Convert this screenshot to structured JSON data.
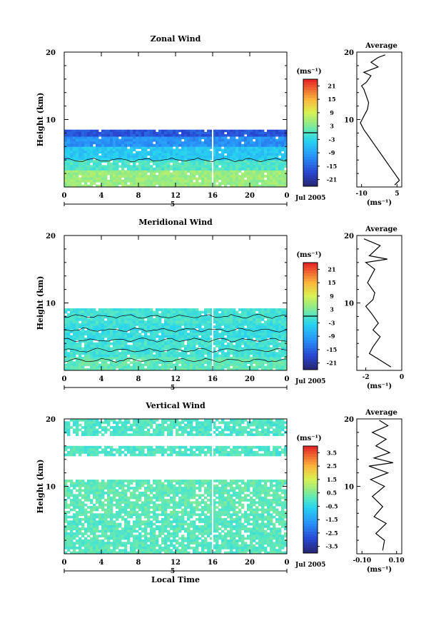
{
  "chart_data": [
    {
      "type": "heatmap",
      "title": "Zonal Wind",
      "ylabel": "Height (km)",
      "ylim": [
        0,
        20
      ],
      "y_ticks": [
        "20",
        "10"
      ],
      "x_ticks": [
        "0",
        "4",
        "8",
        "12",
        "16",
        "20",
        "0"
      ],
      "date_marker": "5",
      "date_label": "Jul 2005",
      "colorbar": {
        "unit": "(ms⁻¹)",
        "ticks": [
          "21",
          "15",
          "9",
          "3",
          "-3",
          "-9",
          "-15",
          "-21"
        ],
        "range": [
          -24,
          24
        ]
      },
      "field": {
        "top_km": 8.5,
        "bands": [
          {
            "from_km": 0.0,
            "to_km": 2.5,
            "value": 5
          },
          {
            "from_km": 2.5,
            "to_km": 4.0,
            "value": 0
          },
          {
            "from_km": 4.0,
            "to_km": 6.0,
            "value": -5
          },
          {
            "from_km": 6.0,
            "to_km": 7.5,
            "value": -11
          },
          {
            "from_km": 7.5,
            "to_km": 8.5,
            "value": -17
          }
        ],
        "contour_level_km": [
          4.0
        ]
      },
      "average": {
        "title": "Average",
        "xlabel": "(ms⁻¹)",
        "x_ticks": [
          "-10",
          "5"
        ],
        "xlim": [
          -12,
          7
        ],
        "y_ticks": [
          "20",
          "10"
        ],
        "profile": [
          [
            4,
            0.3
          ],
          [
            6,
            1.0
          ],
          [
            4,
            2.0
          ],
          [
            2,
            3.0
          ],
          [
            -1,
            4.5
          ],
          [
            -4,
            6
          ],
          [
            -7,
            7.5
          ],
          [
            -9,
            8.5
          ],
          [
            -10.5,
            9.5
          ],
          [
            -9,
            10.5
          ],
          [
            -7.5,
            11.5
          ],
          [
            -7,
            12.5
          ],
          [
            -8,
            13.5
          ],
          [
            -9,
            14.5
          ],
          [
            -10,
            15
          ],
          [
            -8,
            15.5
          ],
          [
            -6,
            16.5
          ],
          [
            -9,
            17
          ],
          [
            -3,
            17.8
          ],
          [
            -6,
            18.5
          ],
          [
            -3,
            19.2
          ],
          [
            0,
            19.6
          ]
        ]
      }
    },
    {
      "type": "heatmap",
      "title": "Meridional Wind",
      "ylabel": "Height (km)",
      "ylim": [
        0,
        20
      ],
      "y_ticks": [
        "20",
        "10"
      ],
      "x_ticks": [
        "0",
        "4",
        "8",
        "12",
        "16",
        "20",
        "0"
      ],
      "date_marker": "5",
      "date_label": "Jul 2005",
      "colorbar": {
        "unit": "(ms⁻¹)",
        "ticks": [
          "21",
          "15",
          "9",
          "3",
          "-3",
          "-9",
          "-15",
          "-21"
        ],
        "range": [
          -24,
          24
        ]
      },
      "field": {
        "top_km": 9.2,
        "bands": [
          {
            "from_km": 0.0,
            "to_km": 2.0,
            "value": 1
          },
          {
            "from_km": 2.0,
            "to_km": 4.5,
            "value": -1
          },
          {
            "from_km": 4.5,
            "to_km": 7.0,
            "value": -2
          },
          {
            "from_km": 7.0,
            "to_km": 9.2,
            "value": -1
          }
        ],
        "contour_level_km": [
          1.5,
          3.0,
          4.5,
          6.0,
          8.0
        ]
      },
      "average": {
        "title": "Average",
        "xlabel": "(ms⁻¹)",
        "x_ticks": [
          "-2",
          "0"
        ],
        "xlim": [
          -2.5,
          0
        ],
        "y_ticks": [
          "20",
          "10"
        ],
        "profile": [
          [
            -0.6,
            0.5
          ],
          [
            -1.2,
            1.5
          ],
          [
            -1.8,
            2.5
          ],
          [
            -1.6,
            3.5
          ],
          [
            -1.2,
            5
          ],
          [
            -1.6,
            6
          ],
          [
            -1.3,
            7
          ],
          [
            -1.7,
            8.5
          ],
          [
            -2.0,
            9.5
          ],
          [
            -1.6,
            10.5
          ],
          [
            -1.5,
            11.5
          ],
          [
            -1.9,
            13
          ],
          [
            -1.5,
            15
          ],
          [
            -2.0,
            16
          ],
          [
            -0.8,
            16.5
          ],
          [
            -1.8,
            17
          ],
          [
            -1.2,
            18.5
          ],
          [
            -2.1,
            19.5
          ]
        ]
      }
    },
    {
      "type": "heatmap",
      "title": "Vertical Wind",
      "ylabel": "Height (km)",
      "xlabel": "Local Time",
      "ylim": [
        0,
        20
      ],
      "y_ticks": [
        "20",
        "10"
      ],
      "x_ticks": [
        "0",
        "4",
        "8",
        "12",
        "16",
        "20",
        "0"
      ],
      "date_marker": "5",
      "date_label": "Jul 2005",
      "colorbar": {
        "unit": "(ms⁻¹)",
        "ticks": [
          "3.5",
          "2.5",
          "1.5",
          "0.5",
          "-0.5",
          "-1.5",
          "-2.5",
          "-3.5"
        ],
        "range": [
          -4,
          4
        ]
      },
      "field": {
        "top_km": 20,
        "bands": [
          {
            "from_km": 0.0,
            "to_km": 6.0,
            "value": 0.1
          },
          {
            "from_km": 6.0,
            "to_km": 11.0,
            "value": 0.2
          },
          {
            "from_km": 14.5,
            "to_km": 16.0,
            "value": 0.0
          },
          {
            "from_km": 17.5,
            "to_km": 20.0,
            "value": 0.0
          }
        ],
        "contour_level_km": []
      },
      "average": {
        "title": "Average",
        "xlabel": "(ms⁻¹)",
        "x_ticks": [
          "-0.10",
          "0.10"
        ],
        "xlim": [
          -0.13,
          0.13
        ],
        "y_ticks": [
          "20",
          "10"
        ],
        "profile": [
          [
            0.02,
            0.5
          ],
          [
            0.03,
            2
          ],
          [
            -0.02,
            3
          ],
          [
            0.04,
            4.5
          ],
          [
            -0.03,
            5.5
          ],
          [
            0.02,
            7
          ],
          [
            -0.04,
            8.5
          ],
          [
            0.03,
            10
          ],
          [
            -0.05,
            11
          ],
          [
            0.05,
            12
          ],
          [
            -0.06,
            13
          ],
          [
            0.08,
            13.5
          ],
          [
            -0.03,
            14.2
          ],
          [
            0.06,
            15
          ],
          [
            -0.02,
            16
          ],
          [
            0.04,
            17
          ],
          [
            -0.04,
            18
          ],
          [
            0.05,
            19
          ],
          [
            0.0,
            19.8
          ]
        ]
      }
    }
  ]
}
